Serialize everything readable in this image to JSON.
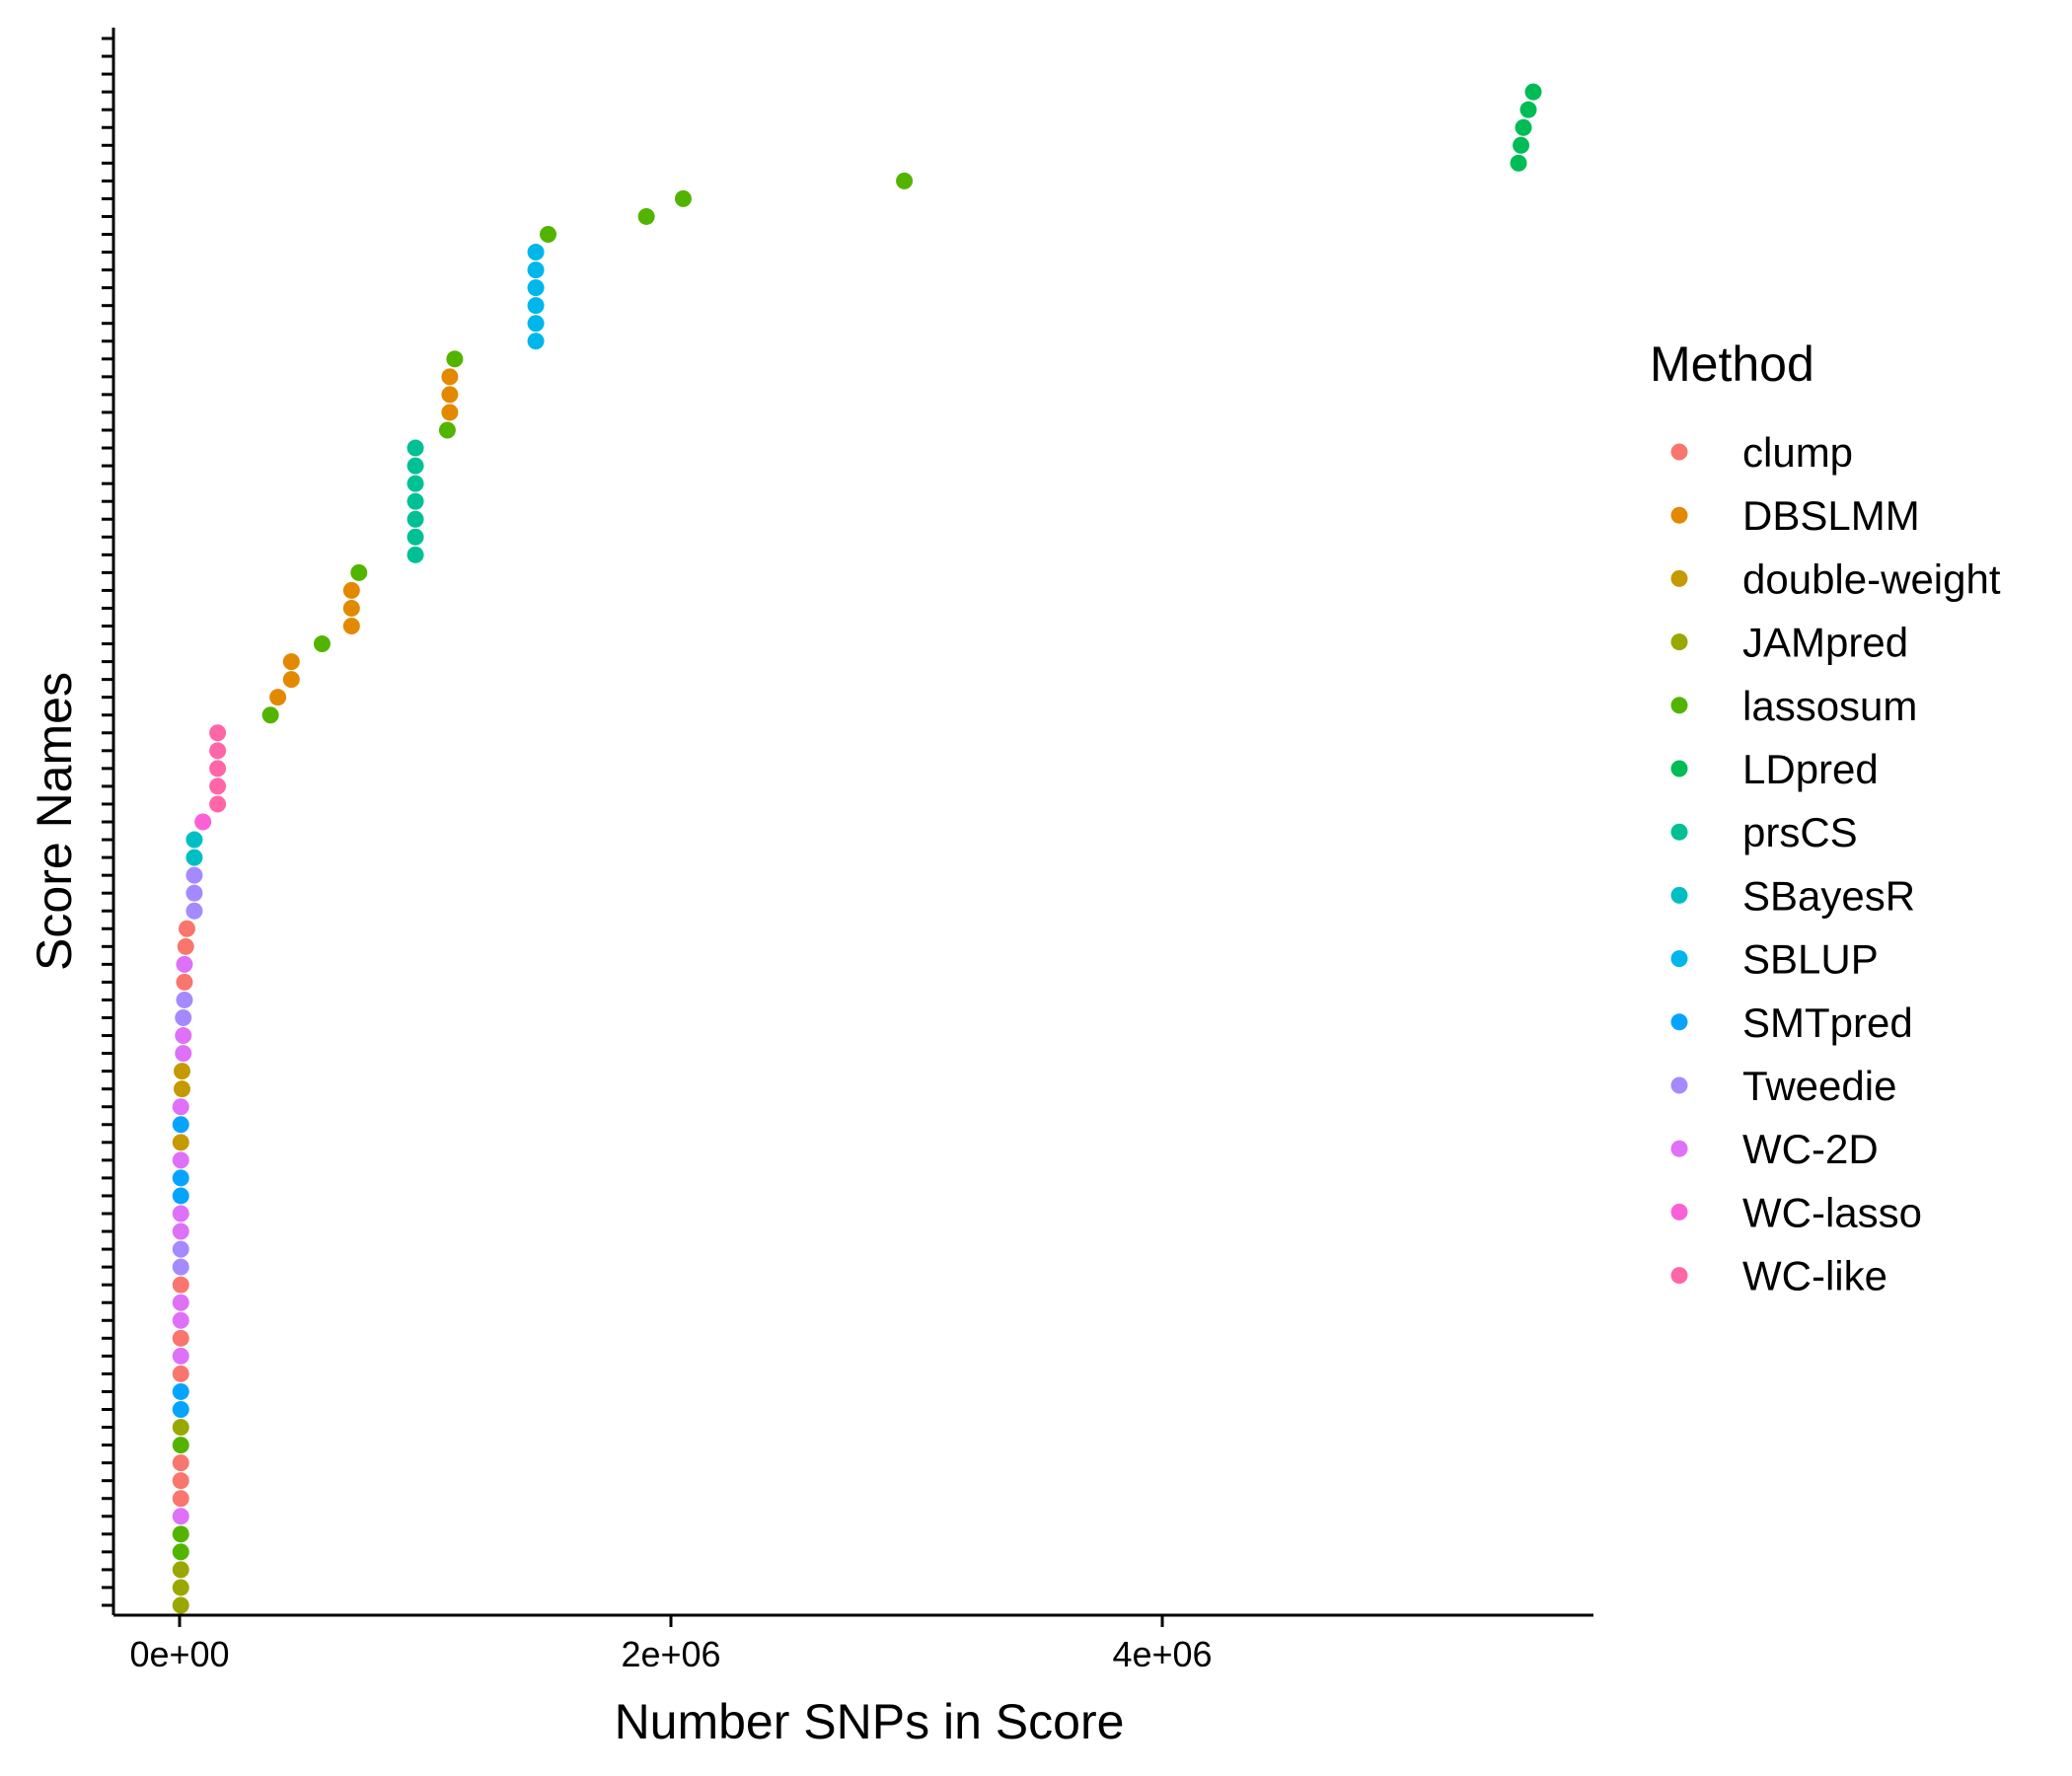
{
  "chart_data": {
    "type": "scatter",
    "xlabel": "Number SNPs in Score",
    "ylabel": "Score Names",
    "xlim": [
      -160000,
      5700000
    ],
    "ylim": [
      0.5,
      89.5
    ],
    "x_ticks": [
      0,
      2000000,
      4000000
    ],
    "x_tick_labels": [
      "0e+00",
      "2e+06",
      "4e+06"
    ],
    "y_tick_count": 89,
    "grid": false,
    "legend": {
      "title": "Method",
      "placement": "right",
      "entries": [
        {
          "name": "clump",
          "color": "#F8766D"
        },
        {
          "name": "DBSLMM",
          "color": "#E38900"
        },
        {
          "name": "double-weight",
          "color": "#C49A00"
        },
        {
          "name": "JAMpred",
          "color": "#99A800"
        },
        {
          "name": "lassosum",
          "color": "#53B400"
        },
        {
          "name": "LDpred",
          "color": "#00BC56"
        },
        {
          "name": "prsCS",
          "color": "#00C094"
        },
        {
          "name": "SBayesR",
          "color": "#00BFC4"
        },
        {
          "name": "SBLUP",
          "color": "#00B6EB"
        },
        {
          "name": "SMTpred",
          "color": "#06A4FF"
        },
        {
          "name": "Tweedie",
          "color": "#A58AFF"
        },
        {
          "name": "WC-2D",
          "color": "#DF70F8"
        },
        {
          "name": "WC-lasso",
          "color": "#FB61D7"
        },
        {
          "name": "WC-like",
          "color": "#FF66A8"
        }
      ]
    },
    "points": [
      {
        "method": "JAMpred",
        "x": 5000
      },
      {
        "method": "JAMpred",
        "x": 5000
      },
      {
        "method": "JAMpred",
        "x": 5000
      },
      {
        "method": "lassosum",
        "x": 5000
      },
      {
        "method": "lassosum",
        "x": 5000
      },
      {
        "method": "WC-2D",
        "x": 5000
      },
      {
        "method": "clump",
        "x": 5000
      },
      {
        "method": "clump",
        "x": 5000
      },
      {
        "method": "clump",
        "x": 5000
      },
      {
        "method": "lassosum",
        "x": 5000
      },
      {
        "method": "JAMpred",
        "x": 5000
      },
      {
        "method": "SMTpred",
        "x": 5000
      },
      {
        "method": "SMTpred",
        "x": 5000
      },
      {
        "method": "clump",
        "x": 5000
      },
      {
        "method": "WC-2D",
        "x": 5000
      },
      {
        "method": "clump",
        "x": 5000
      },
      {
        "method": "WC-2D",
        "x": 5000
      },
      {
        "method": "WC-2D",
        "x": 5000
      },
      {
        "method": "clump",
        "x": 5000
      },
      {
        "method": "Tweedie",
        "x": 5000
      },
      {
        "method": "Tweedie",
        "x": 5000
      },
      {
        "method": "WC-2D",
        "x": 5000
      },
      {
        "method": "WC-2D",
        "x": 5000
      },
      {
        "method": "SMTpred",
        "x": 5000
      },
      {
        "method": "SMTpred",
        "x": 5000
      },
      {
        "method": "WC-2D",
        "x": 5000
      },
      {
        "method": "double-weight",
        "x": 5000
      },
      {
        "method": "SMTpred",
        "x": 5000
      },
      {
        "method": "WC-2D",
        "x": 5000
      },
      {
        "method": "double-weight",
        "x": 10000
      },
      {
        "method": "double-weight",
        "x": 10000
      },
      {
        "method": "WC-2D",
        "x": 15000
      },
      {
        "method": "WC-2D",
        "x": 15000
      },
      {
        "method": "Tweedie",
        "x": 15000
      },
      {
        "method": "Tweedie",
        "x": 20000
      },
      {
        "method": "clump",
        "x": 20000
      },
      {
        "method": "WC-2D",
        "x": 20000
      },
      {
        "method": "clump",
        "x": 25000
      },
      {
        "method": "clump",
        "x": 30000
      },
      {
        "method": "Tweedie",
        "x": 60000
      },
      {
        "method": "Tweedie",
        "x": 60000
      },
      {
        "method": "Tweedie",
        "x": 60000
      },
      {
        "method": "SBayesR",
        "x": 60000
      },
      {
        "method": "SBayesR",
        "x": 60000
      },
      {
        "method": "WC-lasso",
        "x": 95000
      },
      {
        "method": "WC-like",
        "x": 155000
      },
      {
        "method": "WC-like",
        "x": 155000
      },
      {
        "method": "WC-like",
        "x": 155000
      },
      {
        "method": "WC-like",
        "x": 155000
      },
      {
        "method": "WC-like",
        "x": 155000
      },
      {
        "method": "lassosum",
        "x": 370000
      },
      {
        "method": "DBSLMM",
        "x": 400000
      },
      {
        "method": "DBSLMM",
        "x": 455000
      },
      {
        "method": "DBSLMM",
        "x": 455000
      },
      {
        "method": "lassosum",
        "x": 580000
      },
      {
        "method": "DBSLMM",
        "x": 700000
      },
      {
        "method": "DBSLMM",
        "x": 700000
      },
      {
        "method": "DBSLMM",
        "x": 700000
      },
      {
        "method": "lassosum",
        "x": 730000
      },
      {
        "method": "prsCS",
        "x": 960000
      },
      {
        "method": "prsCS",
        "x": 960000
      },
      {
        "method": "prsCS",
        "x": 960000
      },
      {
        "method": "prsCS",
        "x": 960000
      },
      {
        "method": "prsCS",
        "x": 960000
      },
      {
        "method": "prsCS",
        "x": 960000
      },
      {
        "method": "prsCS",
        "x": 960000
      },
      {
        "method": "lassosum",
        "x": 1090000
      },
      {
        "method": "DBSLMM",
        "x": 1100000
      },
      {
        "method": "DBSLMM",
        "x": 1100000
      },
      {
        "method": "DBSLMM",
        "x": 1100000
      },
      {
        "method": "lassosum",
        "x": 1120000
      },
      {
        "method": "SBLUP",
        "x": 1450000
      },
      {
        "method": "SBLUP",
        "x": 1450000
      },
      {
        "method": "SBLUP",
        "x": 1450000
      },
      {
        "method": "SBLUP",
        "x": 1450000
      },
      {
        "method": "SBLUP",
        "x": 1450000
      },
      {
        "method": "SBLUP",
        "x": 1450000
      },
      {
        "method": "lassosum",
        "x": 1500000
      },
      {
        "method": "lassosum",
        "x": 1900000
      },
      {
        "method": "lassosum",
        "x": 2050000
      },
      {
        "method": "lassosum",
        "x": 2950000
      },
      {
        "method": "LDpred",
        "x": 5450000
      },
      {
        "method": "LDpred",
        "x": 5460000
      },
      {
        "method": "LDpred",
        "x": 5470000
      },
      {
        "method": "LDpred",
        "x": 5490000
      },
      {
        "method": "LDpred",
        "x": 5510000
      }
    ]
  }
}
